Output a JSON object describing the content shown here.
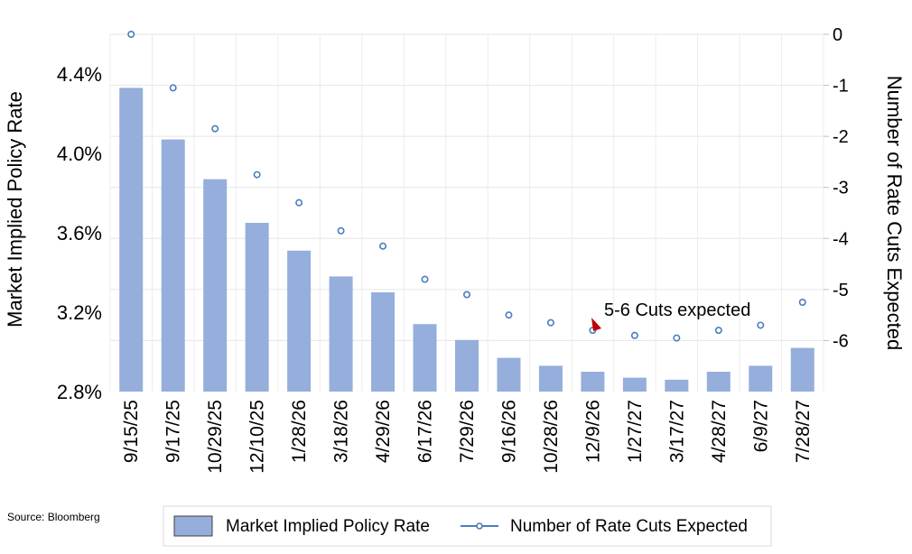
{
  "chart_data": {
    "type": "bar+line",
    "categories": [
      "9/15/25",
      "9/17/25",
      "10/29/25",
      "12/10/25",
      "1/28/26",
      "3/18/26",
      "4/29/26",
      "6/17/26",
      "7/29/26",
      "9/16/26",
      "10/28/26",
      "12/9/26",
      "1/27/27",
      "3/17/27",
      "4/28/27",
      "6/9/27",
      "7/28/27"
    ],
    "series": [
      {
        "name": "Market Implied Policy Rate",
        "type": "bar",
        "axis": "left",
        "color": "#95AEDB",
        "values": [
          4.33,
          4.07,
          3.87,
          3.65,
          3.51,
          3.38,
          3.3,
          3.14,
          3.06,
          2.97,
          2.93,
          2.9,
          2.87,
          2.86,
          2.9,
          2.93,
          3.02
        ]
      },
      {
        "name": "Number of Rate Cuts Expected",
        "type": "line-markers",
        "axis": "right",
        "color": "#4A7EBB",
        "values": [
          0.0,
          -1.05,
          -1.85,
          -2.75,
          -3.3,
          -3.85,
          -4.15,
          -4.8,
          -5.1,
          -5.5,
          -5.65,
          -5.8,
          -5.9,
          -5.95,
          -5.8,
          -5.7,
          -5.25
        ]
      }
    ],
    "ylabel_left": "Market Implied Policy Rate",
    "ylabel_right": "Number of Rate Cuts Expected",
    "ylim_left": [
      2.8,
      4.6
    ],
    "yticks_left": [
      2.8,
      3.2,
      3.6,
      4.0,
      4.4
    ],
    "ytick_labels_left": [
      "2.8%",
      "3.2%",
      "3.6%",
      "4.0%",
      "4.4%"
    ],
    "ylim_right": [
      -7,
      0
    ],
    "yticks_right": [
      0,
      -1,
      -2,
      -3,
      -4,
      -5,
      -6
    ],
    "ytick_labels_right": [
      "0",
      "-1",
      "-2",
      "-3",
      "-4",
      "-5",
      "-6"
    ],
    "annotation": "5-6 Cuts expected",
    "grid": true,
    "legend_position": "bottom"
  },
  "source": "Source: Bloomberg"
}
